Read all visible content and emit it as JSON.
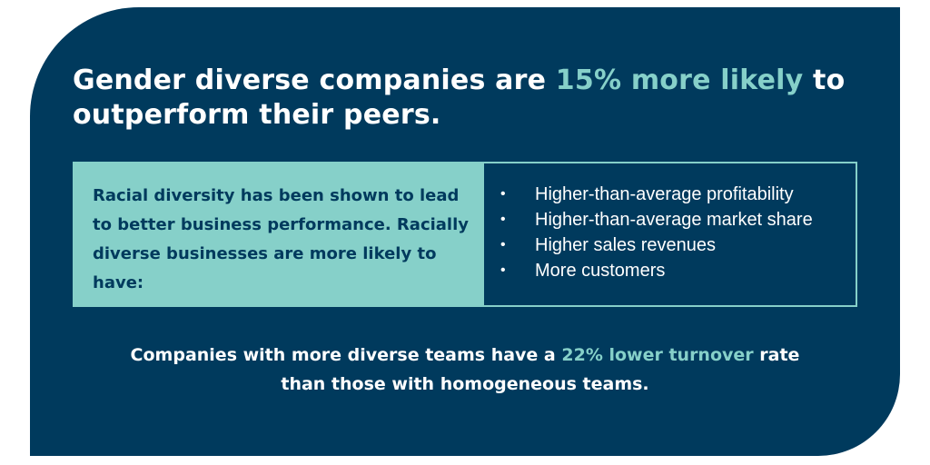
{
  "headline": {
    "part1": "Gender diverse companies are ",
    "highlight": "15% more likely",
    "part2": " to outperform their peers."
  },
  "panel": {
    "left_text": "Racial diversity has been shown to lead to better business performance. Racially diverse businesses are more likely to have:",
    "bullet_glyph": "•",
    "items": [
      "Higher-than-average profitability",
      "Higher-than-average market share",
      "Higher sales revenues",
      "More customers"
    ]
  },
  "footer": {
    "part1": "Companies with more diverse teams have a ",
    "highlight": "22% lower turnover",
    "part2": " rate",
    "line2": "than those with homogeneous teams."
  },
  "colors": {
    "background": "#003a5d",
    "accent": "#86d0c9",
    "text": "#ffffff"
  }
}
